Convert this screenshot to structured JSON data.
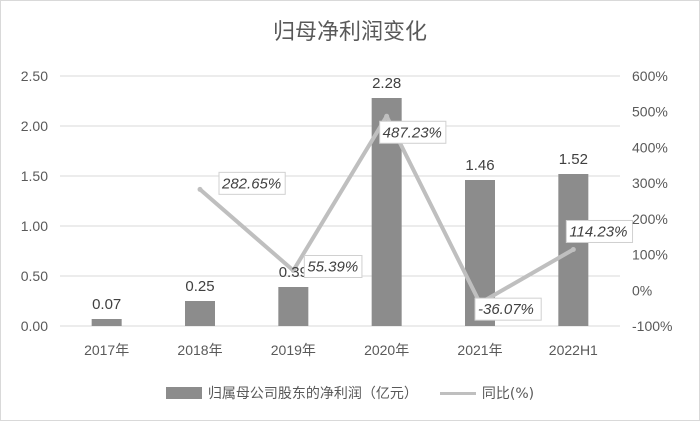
{
  "chart_data": {
    "type": "bar",
    "title": "归母净利润变化",
    "categories": [
      "2017年",
      "2018年",
      "2019年",
      "2020年",
      "2021年",
      "2022H1"
    ],
    "series": [
      {
        "name": "归属母公司股东的净利润（亿元）",
        "type": "bar",
        "axis": "left",
        "color": "#8c8c8c",
        "values": [
          0.07,
          0.25,
          0.39,
          2.28,
          1.46,
          1.52
        ],
        "labels": [
          "0.07",
          "0.25",
          "0.39",
          "2.28",
          "1.46",
          "1.52"
        ]
      },
      {
        "name": "同比(%)",
        "type": "line",
        "axis": "right",
        "color": "#bfbfbf",
        "values": [
          null,
          282.65,
          55.39,
          487.23,
          -36.07,
          114.23
        ],
        "labels": [
          "",
          "282.65%",
          "55.39%",
          "487.23%",
          "-36.07%",
          "114.23%"
        ]
      }
    ],
    "y_left": {
      "min": 0,
      "max": 2.5,
      "ticks": [
        "0.00",
        "0.50",
        "1.00",
        "1.50",
        "2.00",
        "2.50"
      ]
    },
    "y_right": {
      "min": -100,
      "max": 600,
      "ticks": [
        "-100%",
        "0%",
        "100%",
        "200%",
        "300%",
        "400%",
        "500%",
        "600%"
      ]
    },
    "grid": true,
    "legend_position": "bottom"
  }
}
